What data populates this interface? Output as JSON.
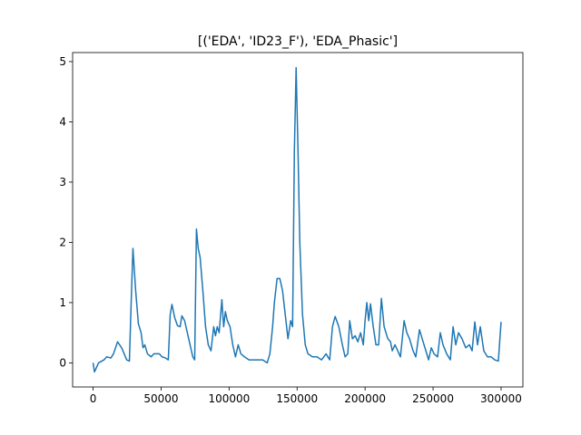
{
  "chart_data": {
    "type": "line",
    "title": "[('EDA', 'ID23_F'), 'EDA_Phasic']",
    "x": [
      0,
      1000,
      4000,
      8000,
      10000,
      13000,
      15000,
      18000,
      21000,
      24700,
      26700,
      28000,
      29300,
      31300,
      33300,
      35300,
      36700,
      38000,
      40000,
      42700,
      44700,
      46700,
      48700,
      50700,
      53300,
      55300,
      56700,
      58000,
      60000,
      62000,
      64000,
      65300,
      67300,
      69300,
      71300,
      73300,
      74700,
      76000,
      77300,
      78700,
      80700,
      82700,
      84700,
      86700,
      88700,
      90000,
      91300,
      92700,
      94700,
      96000,
      97300,
      98700,
      100700,
      102700,
      104700,
      106700,
      108700,
      111300,
      114700,
      118000,
      121300,
      124700,
      128000,
      130000,
      132000,
      133300,
      135300,
      137300,
      139300,
      141300,
      143300,
      145300,
      146700,
      148000,
      149300,
      150700,
      152000,
      154000,
      156000,
      158000,
      161300,
      164700,
      168000,
      171300,
      174000,
      176000,
      178000,
      180700,
      183300,
      185300,
      187300,
      188700,
      190700,
      192700,
      194700,
      196700,
      198700,
      200000,
      201300,
      202700,
      204000,
      206000,
      208000,
      210000,
      212000,
      214000,
      216700,
      218700,
      220000,
      222000,
      224000,
      226000,
      228700,
      230700,
      232700,
      235300,
      237300,
      240000,
      242000,
      244700,
      246700,
      248700,
      250700,
      253300,
      255300,
      257300,
      260000,
      262700,
      264700,
      266700,
      268700,
      271300,
      274000,
      276700,
      278700,
      280700,
      282700,
      284700,
      287300,
      290000,
      292700,
      295300,
      298000,
      300000
    ],
    "series": [
      {
        "color": "#1f77b4",
        "values": [
          0,
          -0.15,
          0,
          0.05,
          0.1,
          0.08,
          0.15,
          0.35,
          0.25,
          0.05,
          0.03,
          1.0,
          1.9,
          1.2,
          0.65,
          0.5,
          0.25,
          0.3,
          0.15,
          0.1,
          0.15,
          0.15,
          0.15,
          0.1,
          0.08,
          0.05,
          0.8,
          0.97,
          0.75,
          0.62,
          0.6,
          0.78,
          0.7,
          0.5,
          0.3,
          0.1,
          0.05,
          2.22,
          1.9,
          1.75,
          1.2,
          0.6,
          0.3,
          0.2,
          0.6,
          0.45,
          0.6,
          0.5,
          1.05,
          0.6,
          0.85,
          0.7,
          0.6,
          0.3,
          0.1,
          0.3,
          0.15,
          0.1,
          0.05,
          0.05,
          0.05,
          0.05,
          0.0,
          0.15,
          0.6,
          1.0,
          1.4,
          1.4,
          1.2,
          0.8,
          0.4,
          0.7,
          0.6,
          3.5,
          4.9,
          3.5,
          2.0,
          0.8,
          0.3,
          0.15,
          0.1,
          0.1,
          0.05,
          0.15,
          0.05,
          0.6,
          0.77,
          0.6,
          0.3,
          0.1,
          0.15,
          0.7,
          0.4,
          0.45,
          0.35,
          0.5,
          0.3,
          0.7,
          1.0,
          0.7,
          0.98,
          0.6,
          0.3,
          0.3,
          1.07,
          0.6,
          0.4,
          0.35,
          0.2,
          0.3,
          0.2,
          0.1,
          0.7,
          0.5,
          0.4,
          0.2,
          0.1,
          0.55,
          0.4,
          0.2,
          0.05,
          0.25,
          0.15,
          0.1,
          0.5,
          0.3,
          0.15,
          0.05,
          0.6,
          0.3,
          0.5,
          0.4,
          0.25,
          0.3,
          0.2,
          0.68,
          0.3,
          0.6,
          0.2,
          0.1,
          0.1,
          0.05,
          0.03,
          0.68
        ]
      }
    ],
    "xlim": [
      -15050,
      316050
    ],
    "ylim": [
      -0.4,
      5.15
    ],
    "xticks": [
      0,
      50000,
      100000,
      150000,
      200000,
      250000,
      300000
    ],
    "yticks": [
      0,
      1,
      2,
      3,
      4,
      5
    ]
  }
}
